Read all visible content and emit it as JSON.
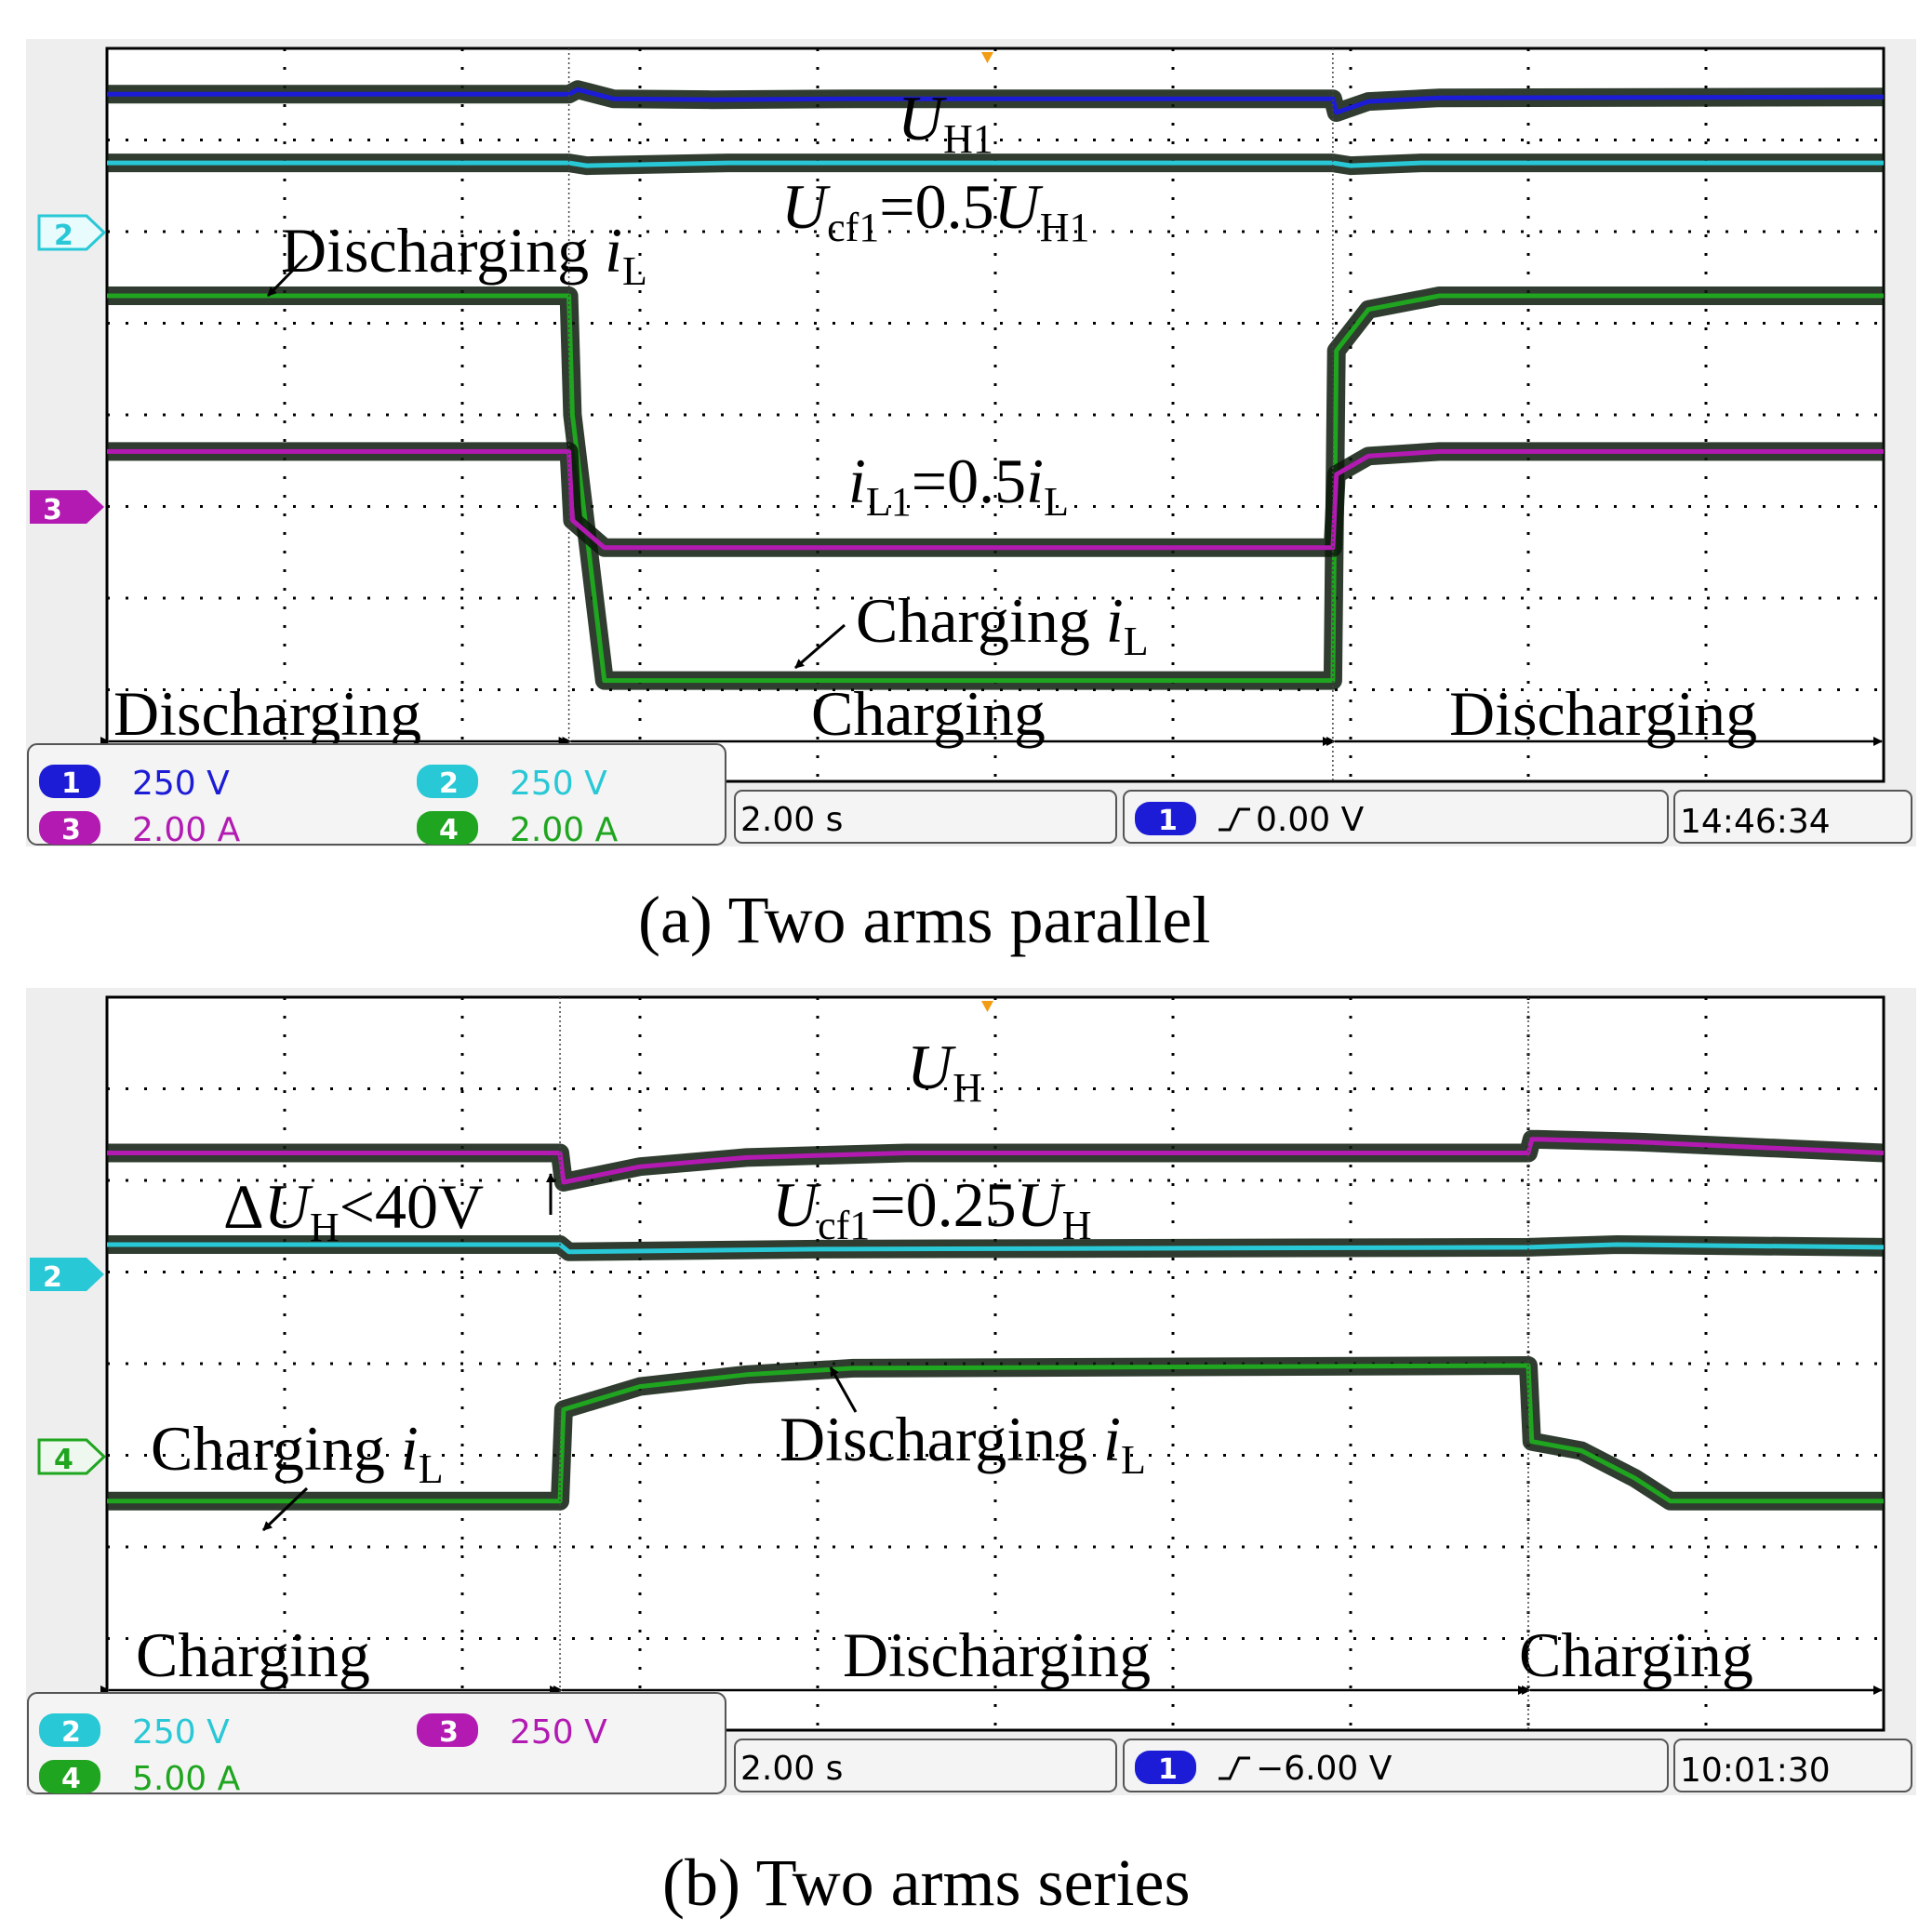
{
  "panels": [
    {
      "id": "a",
      "caption": "(a)  Two arms parallel",
      "chart_data": {
        "type": "line",
        "title": "(a)  Two arms parallel",
        "x_unit": "div",
        "xlim": [
          0,
          10
        ],
        "ylim": [
          0,
          8
        ],
        "timebase": "2.00 s",
        "trigger": {
          "channel": "1",
          "level": "0.00 V"
        },
        "clock": "14:46:34",
        "channel_settings": [
          {
            "ch": "1",
            "scale": "250 V",
            "color": "#1c1cd6"
          },
          {
            "ch": "2",
            "scale": "250 V",
            "color": "#29c8d6"
          },
          {
            "ch": "3",
            "scale": "2.00 A",
            "color": "#b21ab2"
          },
          {
            "ch": "4",
            "scale": "2.00 A",
            "color": "#1fa51f"
          }
        ],
        "ground_markers": [
          {
            "ch": "2",
            "y": 5.95,
            "style": "outline"
          },
          {
            "ch": "3",
            "y": 2.95,
            "style": "solid"
          }
        ],
        "series": [
          {
            "name": "U_H1",
            "ch": "1",
            "color": "#1c1cd6",
            "points": [
              [
                0,
                7.5
              ],
              [
                2.6,
                7.5
              ],
              [
                2.65,
                7.55
              ],
              [
                2.85,
                7.45
              ],
              [
                3.4,
                7.44
              ],
              [
                4.2,
                7.45
              ],
              [
                6.9,
                7.45
              ],
              [
                6.92,
                7.3
              ],
              [
                7.1,
                7.42
              ],
              [
                7.5,
                7.46
              ],
              [
                10,
                7.47
              ]
            ]
          },
          {
            "name": "U_cf1",
            "ch": "2",
            "color": "#29c8d6",
            "points": [
              [
                0,
                6.75
              ],
              [
                2.6,
                6.75
              ],
              [
                2.7,
                6.72
              ],
              [
                3.5,
                6.75
              ],
              [
                6.9,
                6.75
              ],
              [
                7.0,
                6.72
              ],
              [
                7.4,
                6.75
              ],
              [
                10,
                6.75
              ]
            ]
          },
          {
            "name": "i_L",
            "ch": "4",
            "color": "#1fa51f",
            "points": [
              [
                0,
                5.3
              ],
              [
                2.6,
                5.3
              ],
              [
                2.62,
                4.0
              ],
              [
                2.8,
                1.1
              ],
              [
                5.0,
                1.1
              ],
              [
                6.9,
                1.1
              ],
              [
                6.92,
                4.7
              ],
              [
                7.1,
                5.15
              ],
              [
                7.5,
                5.3
              ],
              [
                10,
                5.3
              ]
            ]
          },
          {
            "name": "i_L1",
            "ch": "3",
            "color": "#b21ab2",
            "points": [
              [
                0,
                3.6
              ],
              [
                2.6,
                3.6
              ],
              [
                2.62,
                2.85
              ],
              [
                2.8,
                2.55
              ],
              [
                3.1,
                2.55
              ],
              [
                6.9,
                2.55
              ],
              [
                6.92,
                3.35
              ],
              [
                7.1,
                3.55
              ],
              [
                7.5,
                3.6
              ],
              [
                10,
                3.6
              ]
            ]
          }
        ],
        "annotations": [
          {
            "text": "Discharging iL",
            "x": 1.0,
            "y": 5.95
          },
          {
            "text": "Charging iL",
            "x": 4.2,
            "y": 1.45
          },
          {
            "text": "iL1=0.5iL",
            "x": 4.0,
            "y": 2.7
          },
          {
            "text": "UH1",
            "x": 4.5,
            "y": 7.1
          },
          {
            "text": "Ucf1=0.5UH1",
            "x": 3.8,
            "y": 6.1
          }
        ],
        "phases": [
          {
            "label": "Discharging",
            "from": 0,
            "to": 2.6
          },
          {
            "label": "Charging",
            "from": 2.6,
            "to": 6.9
          },
          {
            "label": "Discharging",
            "from": 6.9,
            "to": 10
          }
        ]
      },
      "text": {
        "ann_dis": "Discharging ",
        "ann_dis_i": "i",
        "ann_dis_sub": "L",
        "ann_chg": "Charging ",
        "ann_chg_i": "i",
        "ann_chg_sub": "L",
        "ann_il1_i": "i",
        "ann_il1_sub": "L1",
        "ann_il1_mid": "=0.5",
        "ann_il1_i2": "i",
        "ann_il1_sub2": "L",
        "ann_uh_u": "U",
        "ann_uh_sub": "H1",
        "ann_ucf_u": "U",
        "ann_ucf_sub": "cf1",
        "ann_ucf_mid": "=0.5",
        "ann_ucf_u2": "U",
        "ann_ucf_sub2": "H1",
        "phase1": "Discharging",
        "phase2": "Charging",
        "phase3": "Discharging",
        "marker2": "2",
        "marker3": "3"
      }
    },
    {
      "id": "b",
      "caption": "(b)  Two arms series",
      "chart_data": {
        "type": "line",
        "title": "(b)  Two arms series",
        "x_unit": "div",
        "xlim": [
          0,
          10
        ],
        "ylim": [
          0,
          8
        ],
        "timebase": "2.00 s",
        "trigger": {
          "channel": "1",
          "level": "−6.00 V"
        },
        "clock": "10:01:30",
        "channel_settings": [
          {
            "ch": "2",
            "scale": "250 V",
            "color": "#29c8d6"
          },
          {
            "ch": "3",
            "scale": "250 V",
            "color": "#b21ab2"
          },
          {
            "ch": "4",
            "scale": "5.00 A",
            "color": "#1fa51f"
          }
        ],
        "ground_markers": [
          {
            "ch": "2",
            "y": 5.0,
            "style": "solid"
          },
          {
            "ch": "4",
            "y": 2.95,
            "style": "outline"
          }
        ],
        "series": [
          {
            "name": "U_H",
            "ch": "3",
            "color": "#b21ab2",
            "points": [
              [
                0,
                6.3
              ],
              [
                2.55,
                6.3
              ],
              [
                2.57,
                5.98
              ],
              [
                3.0,
                6.15
              ],
              [
                3.6,
                6.25
              ],
              [
                4.5,
                6.3
              ],
              [
                8.0,
                6.3
              ],
              [
                8.02,
                6.45
              ],
              [
                8.6,
                6.42
              ],
              [
                10,
                6.3
              ]
            ]
          },
          {
            "name": "U_cf1",
            "ch": "2",
            "color": "#29c8d6",
            "points": [
              [
                0,
                5.3
              ],
              [
                2.55,
                5.3
              ],
              [
                2.6,
                5.22
              ],
              [
                4.0,
                5.25
              ],
              [
                8.0,
                5.27
              ],
              [
                8.5,
                5.3
              ],
              [
                10,
                5.27
              ]
            ]
          },
          {
            "name": "i_L",
            "ch": "4",
            "color": "#1fa51f",
            "points": [
              [
                0,
                2.5
              ],
              [
                2.55,
                2.5
              ],
              [
                2.57,
                3.5
              ],
              [
                3.0,
                3.75
              ],
              [
                3.6,
                3.88
              ],
              [
                4.2,
                3.95
              ],
              [
                8.0,
                3.98
              ],
              [
                8.02,
                3.15
              ],
              [
                8.3,
                3.05
              ],
              [
                8.6,
                2.75
              ],
              [
                8.8,
                2.5
              ],
              [
                10,
                2.5
              ]
            ]
          }
        ],
        "annotations": [
          {
            "text": "UH",
            "x": 4.5,
            "y": 7.1
          },
          {
            "text": "ΔUH<40V",
            "x": 0.65,
            "y": 5.6
          },
          {
            "text": "Ucf1=0.25UH",
            "x": 3.7,
            "y": 5.65
          },
          {
            "text": "Charging iL",
            "x": 0.25,
            "y": 3.0
          },
          {
            "text": "Discharging iL",
            "x": 3.8,
            "y": 3.1
          }
        ],
        "phases": [
          {
            "label": "Charging",
            "from": 0,
            "to": 2.55
          },
          {
            "label": "Discharging",
            "from": 2.55,
            "to": 8.0
          },
          {
            "label": "Charging",
            "from": 8.0,
            "to": 10
          }
        ]
      },
      "text": {
        "ann_uh_u": "U",
        "ann_uh_sub": "H",
        "ann_duh_d": "Δ",
        "ann_duh_u": "U",
        "ann_duh_sub": "H",
        "ann_duh_rest": "<40V",
        "ann_ucf_u": "U",
        "ann_ucf_sub": "cf1",
        "ann_ucf_mid": "=0.25",
        "ann_ucf_u2": "U",
        "ann_ucf_sub2": "H",
        "ann_chg": "Charging ",
        "ann_chg_i": "i",
        "ann_chg_sub": "L",
        "ann_dis": "Discharging ",
        "ann_dis_i": "i",
        "ann_dis_sub": "L",
        "phase1": "Charging",
        "phase2": "Discharging",
        "phase3": "Charging",
        "marker2": "2",
        "marker4": "4"
      }
    }
  ]
}
